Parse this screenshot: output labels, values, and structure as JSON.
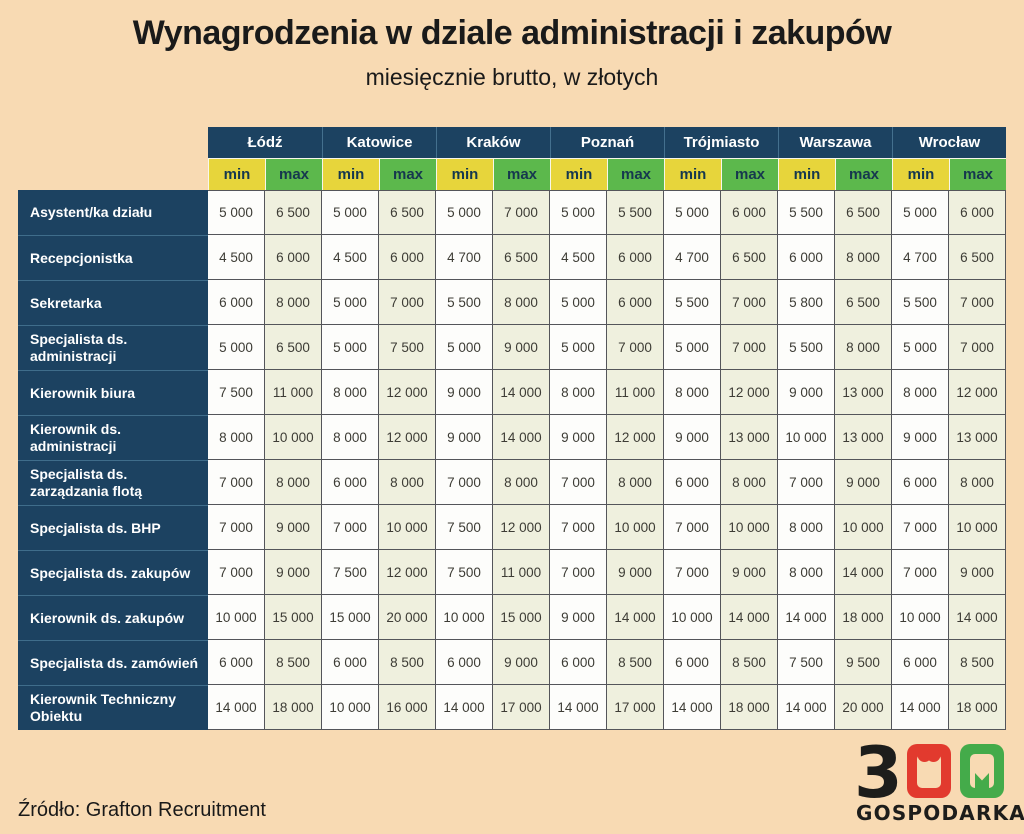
{
  "chart_data": {
    "type": "table",
    "title": "Wynagrodzenia w dziale administracji i zakupów",
    "subtitle": "miesięcznie brutto, w złotych",
    "cities": [
      "Łódź",
      "Katowice",
      "Kraków",
      "Poznań",
      "Trójmiasto",
      "Warszawa",
      "Wrocław"
    ],
    "subcolumns": [
      "min",
      "max"
    ],
    "rows": [
      {
        "label": "Asystent/ka działu",
        "values": [
          5000,
          6500,
          5000,
          6500,
          5000,
          7000,
          5000,
          5500,
          5000,
          6000,
          5500,
          6500,
          5000,
          6000
        ]
      },
      {
        "label": "Recepcjonistka",
        "values": [
          4500,
          6000,
          4500,
          6000,
          4700,
          6500,
          4500,
          6000,
          4700,
          6500,
          6000,
          8000,
          4700,
          6500
        ]
      },
      {
        "label": "Sekretarka",
        "values": [
          6000,
          8000,
          5000,
          7000,
          5500,
          8000,
          5000,
          6000,
          5500,
          7000,
          5800,
          6500,
          5500,
          7000
        ]
      },
      {
        "label": "Specjalista ds. administracji",
        "values": [
          5000,
          6500,
          5000,
          7500,
          5000,
          9000,
          5000,
          7000,
          5000,
          7000,
          5500,
          8000,
          5000,
          7000
        ]
      },
      {
        "label": "Kierownik biura",
        "values": [
          7500,
          11000,
          8000,
          12000,
          9000,
          14000,
          8000,
          11000,
          8000,
          12000,
          9000,
          13000,
          8000,
          12000
        ]
      },
      {
        "label": "Kierownik ds. administracji",
        "values": [
          8000,
          10000,
          8000,
          12000,
          9000,
          14000,
          9000,
          12000,
          9000,
          13000,
          10000,
          13000,
          9000,
          13000
        ]
      },
      {
        "label": "Specjalista ds. zarządzania flotą",
        "values": [
          7000,
          8000,
          6000,
          8000,
          7000,
          8000,
          7000,
          8000,
          6000,
          8000,
          7000,
          9000,
          6000,
          8000
        ]
      },
      {
        "label": "Specjalista ds. BHP",
        "values": [
          7000,
          9000,
          7000,
          10000,
          7500,
          12000,
          7000,
          10000,
          7000,
          10000,
          8000,
          10000,
          7000,
          10000
        ]
      },
      {
        "label": "Specjalista ds. zakupów",
        "values": [
          7000,
          9000,
          7500,
          12000,
          7500,
          11000,
          7000,
          9000,
          7000,
          9000,
          8000,
          14000,
          7000,
          9000
        ]
      },
      {
        "label": "Kierownik ds. zakupów",
        "values": [
          10000,
          15000,
          15000,
          20000,
          10000,
          15000,
          9000,
          14000,
          10000,
          14000,
          14000,
          18000,
          10000,
          14000
        ]
      },
      {
        "label": "Specjalista ds. zamówień",
        "values": [
          6000,
          8500,
          6000,
          8500,
          6000,
          9000,
          6000,
          8500,
          6000,
          8500,
          7500,
          9500,
          6000,
          8500
        ]
      },
      {
        "label": "Kierownik Techniczny Obiektu",
        "values": [
          14000,
          18000,
          10000,
          16000,
          14000,
          17000,
          14000,
          17000,
          14000,
          18000,
          14000,
          20000,
          14000,
          18000
        ]
      }
    ]
  },
  "footer": {
    "source": "Źródło: Grafton Recruitment"
  },
  "logo": {
    "digit": "3",
    "wordmark": "GOSPODARKA"
  },
  "colors": {
    "background": "#f8dab3",
    "header_navy": "#1c4261",
    "min_yellow": "#e7d53b",
    "max_green": "#5cb84c",
    "min_cell": "#fdfdfb",
    "max_cell": "#eff0de",
    "logo_red": "#e23a2e",
    "logo_green": "#44ab4a",
    "logo_black": "#1d1d1b"
  }
}
